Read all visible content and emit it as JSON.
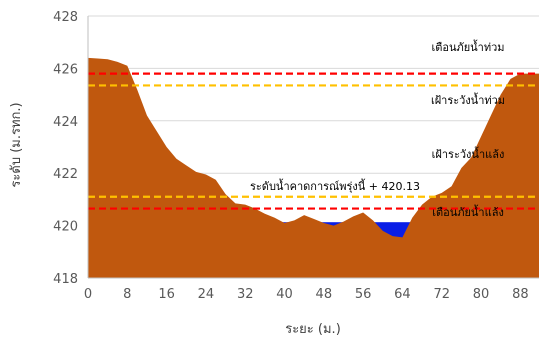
{
  "chart_data": {
    "type": "area",
    "title": "",
    "xlabel": "ระยะ (ม.)",
    "ylabel": "ระดับ (ม.รทก.)",
    "xlim": [
      0,
      92
    ],
    "ylim": [
      418,
      428
    ],
    "x_ticks": [
      0,
      8,
      16,
      24,
      32,
      40,
      48,
      56,
      64,
      72,
      80,
      88
    ],
    "y_ticks": [
      418,
      420,
      422,
      424,
      426,
      428
    ],
    "grid": "horizontal",
    "colors": {
      "ground": "#C0580E",
      "water": "#0A1EE6",
      "red_line": "#FF0000",
      "yellow_line": "#FFC000",
      "grid": "#D9D9D9",
      "axis": "#BFBFBF"
    },
    "water_level": {
      "value": 420.13,
      "label": "ระดับน้ำคาดการณ์พรุ่งนี้ + 420.13"
    },
    "threshold_lines": [
      {
        "name": "เตือนภัยน้ำท่วม",
        "value": 425.8,
        "style": "red"
      },
      {
        "name": "เฝ้าระวังน้ำท่วม",
        "value": 425.35,
        "style": "yellow"
      },
      {
        "name": "เฝ้าระวังน้ำแล้ง",
        "value": 421.1,
        "style": "yellow"
      },
      {
        "name": "เตือนภัยน้ำแล้ง",
        "value": 420.65,
        "style": "red"
      }
    ],
    "ground_profile": {
      "x": [
        0,
        2,
        4,
        6,
        8,
        10,
        12,
        14,
        16,
        18,
        20,
        22,
        24,
        26,
        28,
        30,
        32,
        34,
        36,
        38,
        40,
        42,
        44,
        46,
        48,
        50,
        52,
        54,
        56,
        58,
        60,
        62,
        64,
        66,
        68,
        70,
        72,
        74,
        76,
        78,
        80,
        82,
        84,
        86,
        88,
        90,
        92
      ],
      "y": [
        426.4,
        426.38,
        426.35,
        426.25,
        426.1,
        425.2,
        424.2,
        423.6,
        423.0,
        422.55,
        422.3,
        422.05,
        421.95,
        421.75,
        421.2,
        420.85,
        420.8,
        420.65,
        420.45,
        420.3,
        420.1,
        420.2,
        420.4,
        420.25,
        420.1,
        420.0,
        420.15,
        420.35,
        420.5,
        420.2,
        419.8,
        419.6,
        419.55,
        420.3,
        420.8,
        421.1,
        421.25,
        421.5,
        422.2,
        422.6,
        423.4,
        424.2,
        425.0,
        425.6,
        425.8,
        425.8,
        425.8
      ]
    }
  }
}
